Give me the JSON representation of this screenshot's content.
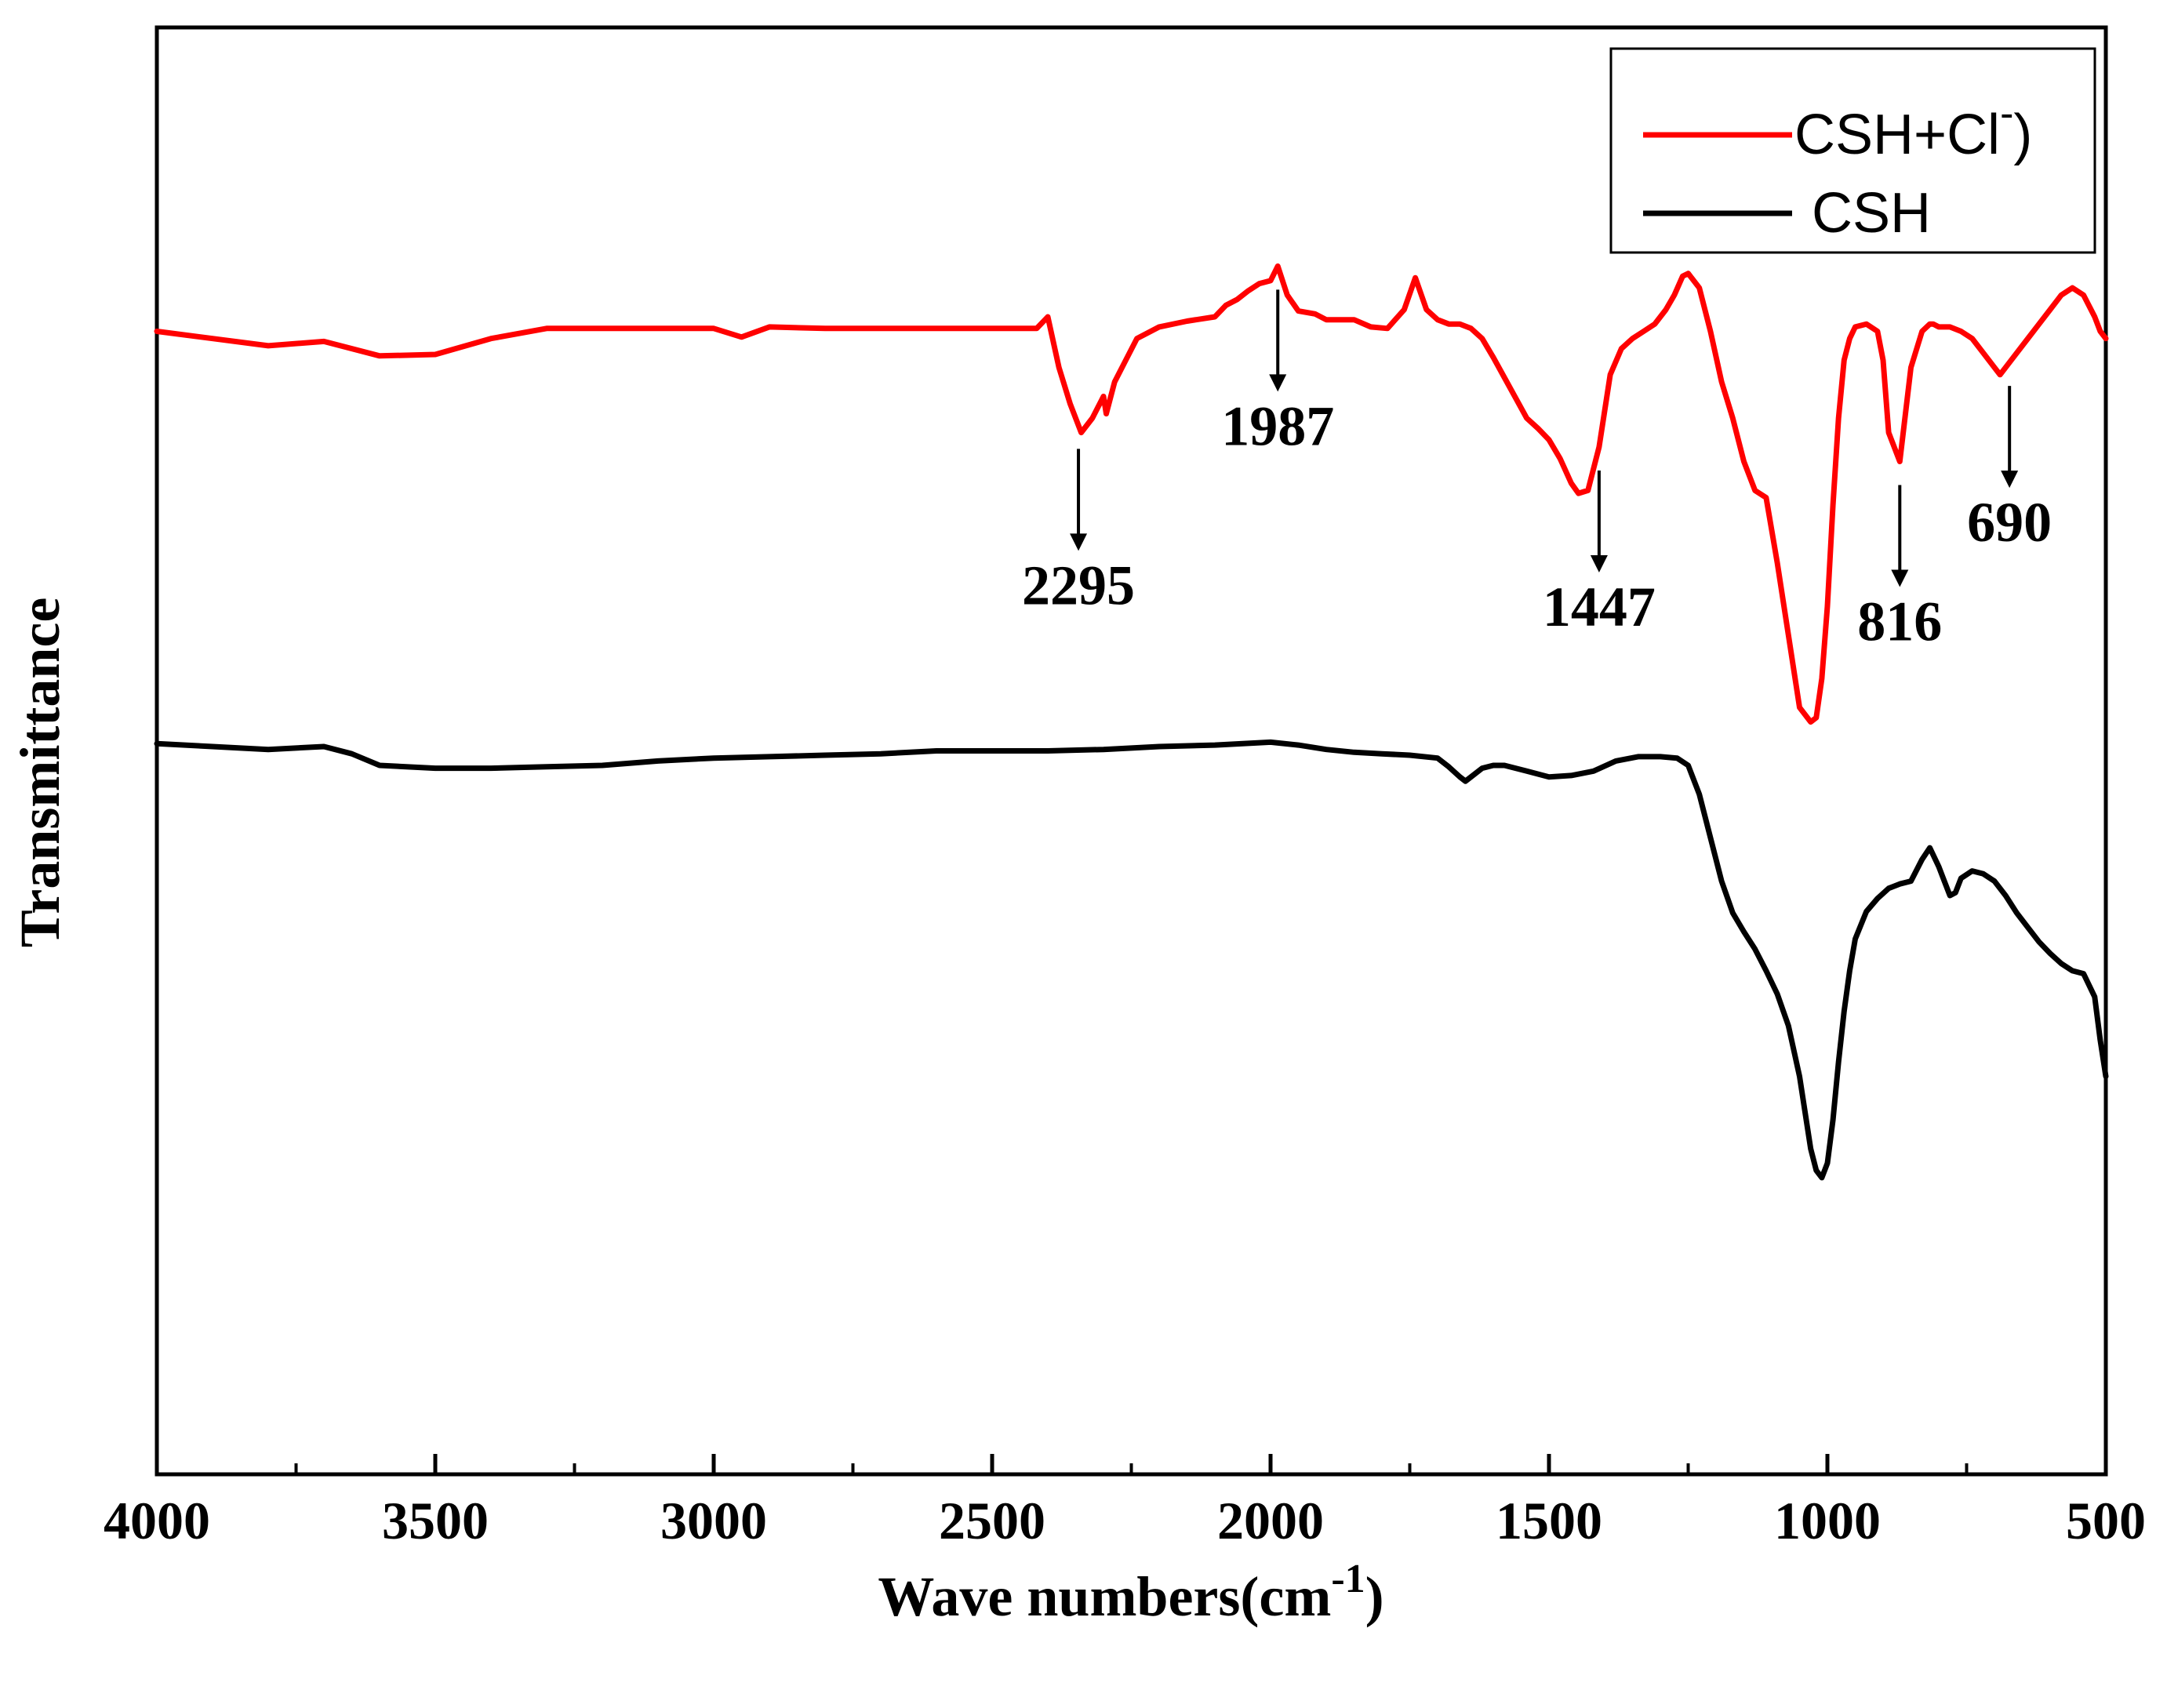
{
  "chart_data": {
    "type": "line",
    "title": "",
    "xlabel": "Wave numbers(cm",
    "xlabel_sup": "-1",
    "xlabel_tail": ")",
    "ylabel": "Transmittance",
    "xlim": [
      4000,
      500
    ],
    "ylim": [
      0,
      100
    ],
    "x_ticks": [
      4000,
      3500,
      3000,
      2500,
      2000,
      1500,
      1000,
      500
    ],
    "x_tick_labels": [
      "4000",
      "3500",
      "3000",
      "2500",
      "2000",
      "1500",
      "1000",
      "500"
    ],
    "grid": false,
    "legend_position": "top-right",
    "legend": [
      {
        "label": "CSH+Cl",
        "sup": "-",
        "tail": ")",
        "color": "#ff0000"
      },
      {
        "label": "CSH",
        "color": "#000000"
      }
    ],
    "series": [
      {
        "name": "CSH+Cl-)",
        "color": "#ff0000",
        "x": [
          4000,
          3900,
          3800,
          3700,
          3600,
          3500,
          3400,
          3300,
          3200,
          3100,
          3000,
          2950,
          2900,
          2800,
          2700,
          2600,
          2500,
          2420,
          2400,
          2380,
          2360,
          2340,
          2320,
          2300,
          2295,
          2280,
          2260,
          2240,
          2200,
          2150,
          2100,
          2080,
          2060,
          2040,
          2020,
          2000,
          1987,
          1970,
          1950,
          1920,
          1900,
          1850,
          1820,
          1790,
          1760,
          1740,
          1720,
          1700,
          1680,
          1660,
          1640,
          1620,
          1600,
          1580,
          1560,
          1540,
          1520,
          1500,
          1480,
          1460,
          1447,
          1430,
          1410,
          1390,
          1370,
          1350,
          1330,
          1310,
          1290,
          1275,
          1260,
          1250,
          1230,
          1210,
          1190,
          1170,
          1150,
          1130,
          1110,
          1090,
          1070,
          1050,
          1030,
          1020,
          1010,
          1000,
          990,
          980,
          970,
          960,
          950,
          930,
          910,
          900,
          890,
          870,
          850,
          830,
          816,
          810,
          800,
          780,
          760,
          740,
          720,
          700,
          690,
          680,
          660,
          640,
          620,
          600,
          580,
          560,
          540,
          520,
          510,
          500
        ],
        "y": [
          79.0,
          78.5,
          78.0,
          78.3,
          77.3,
          77.4,
          78.5,
          79.2,
          79.2,
          79.2,
          79.2,
          78.6,
          79.3,
          79.2,
          79.2,
          79.2,
          79.2,
          79.2,
          80.0,
          76.5,
          74.0,
          72.0,
          73.0,
          74.5,
          73.3,
          75.5,
          77.0,
          78.5,
          79.3,
          79.7,
          80.0,
          80.8,
          81.2,
          81.8,
          82.3,
          82.5,
          83.5,
          81.5,
          80.4,
          80.2,
          79.8,
          79.8,
          79.3,
          79.2,
          80.5,
          82.7,
          80.5,
          79.8,
          79.5,
          79.5,
          79.2,
          78.5,
          77.2,
          75.8,
          74.4,
          73.0,
          72.3,
          71.5,
          70.2,
          68.5,
          67.8,
          68.0,
          71.0,
          76.0,
          77.8,
          78.5,
          79.0,
          79.5,
          80.5,
          81.5,
          82.8,
          83.0,
          82.0,
          79.0,
          75.5,
          73.0,
          70.0,
          68.0,
          67.5,
          63.0,
          58.0,
          53.0,
          52.0,
          52.3,
          55.0,
          60.0,
          67.0,
          73.0,
          77.0,
          78.5,
          79.3,
          79.5,
          79.0,
          77.0,
          72.0,
          70.0,
          76.5,
          79.0,
          79.5,
          79.5,
          79.3,
          79.3,
          79.0,
          78.5,
          77.5,
          76.5,
          76.0,
          76.5,
          77.5,
          78.5,
          79.5,
          80.5,
          81.5,
          82.0,
          81.5,
          80.0,
          79.0,
          78.5
        ]
      },
      {
        "name": "CSH",
        "color": "#000000",
        "x": [
          4000,
          3900,
          3800,
          3700,
          3650,
          3600,
          3500,
          3400,
          3300,
          3200,
          3100,
          3000,
          2900,
          2800,
          2700,
          2600,
          2500,
          2400,
          2300,
          2200,
          2100,
          2000,
          1950,
          1900,
          1850,
          1800,
          1750,
          1700,
          1680,
          1660,
          1650,
          1640,
          1620,
          1600,
          1580,
          1560,
          1540,
          1500,
          1460,
          1420,
          1380,
          1340,
          1300,
          1270,
          1250,
          1230,
          1210,
          1190,
          1170,
          1150,
          1130,
          1110,
          1090,
          1070,
          1050,
          1040,
          1030,
          1020,
          1010,
          1000,
          990,
          980,
          970,
          960,
          950,
          930,
          910,
          890,
          870,
          850,
          830,
          816,
          800,
          790,
          780,
          770,
          760,
          740,
          720,
          700,
          680,
          660,
          640,
          620,
          600,
          580,
          560,
          540,
          520,
          510,
          500
        ],
        "y": [
          50.5,
          50.3,
          50.1,
          50.3,
          49.8,
          49.0,
          48.8,
          48.8,
          48.9,
          49.0,
          49.3,
          49.5,
          49.6,
          49.7,
          49.8,
          50.0,
          50.0,
          50.0,
          50.1,
          50.3,
          50.4,
          50.6,
          50.4,
          50.1,
          49.9,
          49.8,
          49.7,
          49.5,
          48.9,
          48.2,
          47.9,
          48.2,
          48.8,
          49.0,
          49.0,
          48.8,
          48.6,
          48.2,
          48.3,
          48.6,
          49.3,
          49.6,
          49.6,
          49.5,
          49.0,
          47.0,
          44.0,
          41.0,
          38.8,
          37.5,
          36.3,
          34.8,
          33.2,
          31.0,
          27.5,
          25.0,
          22.5,
          21.0,
          20.5,
          21.5,
          24.5,
          28.5,
          32.0,
          34.8,
          37.0,
          38.9,
          39.8,
          40.5,
          40.8,
          41.0,
          42.5,
          43.3,
          42.0,
          41.0,
          40.0,
          40.2,
          41.2,
          41.7,
          41.5,
          41.0,
          40.0,
          38.8,
          37.8,
          36.8,
          36.0,
          35.3,
          34.8,
          34.6,
          33.0,
          30.0,
          27.5
        ]
      }
    ],
    "annotations": [
      {
        "label": "2295",
        "x": 2345
      },
      {
        "label": "1987",
        "x": 1987
      },
      {
        "label": "1447",
        "x": 1410
      },
      {
        "label": "816",
        "x": 870
      },
      {
        "label": "690",
        "x": 673
      }
    ]
  }
}
